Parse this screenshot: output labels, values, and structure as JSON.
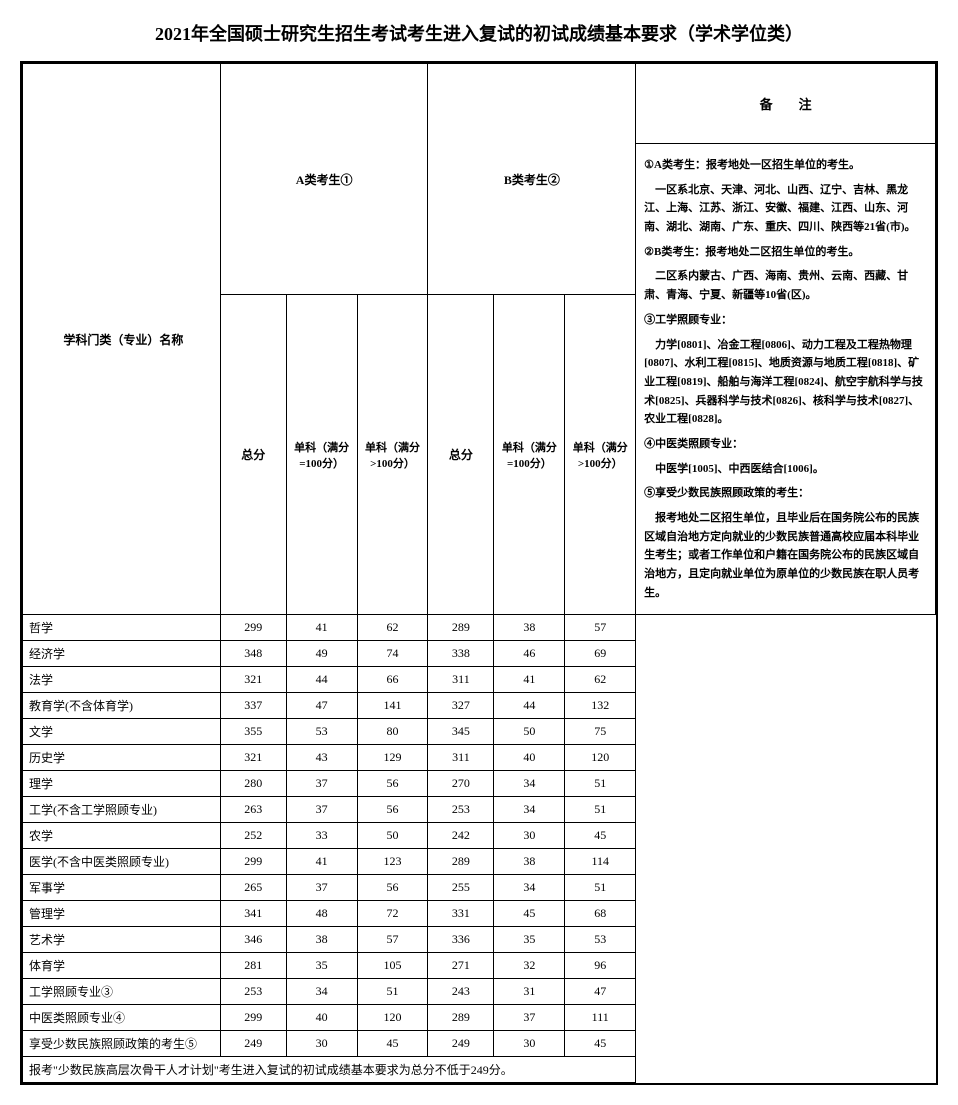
{
  "title": "2021年全国硕士研究生招生考试考生进入复试的初试成绩基本要求（学术学位类）",
  "header": {
    "subject": "学科门类（专业）名称",
    "groupA": "A类考生①",
    "groupB": "B类考生②",
    "total": "总分",
    "single100": "单科（满分=100分）",
    "singleOver100": "单科（满分>100分）",
    "remarks": "备　　注"
  },
  "rows": [
    {
      "name": "哲学",
      "a_total": "299",
      "a_s1": "41",
      "a_s2": "62",
      "b_total": "289",
      "b_s1": "38",
      "b_s2": "57"
    },
    {
      "name": "经济学",
      "a_total": "348",
      "a_s1": "49",
      "a_s2": "74",
      "b_total": "338",
      "b_s1": "46",
      "b_s2": "69"
    },
    {
      "name": "法学",
      "a_total": "321",
      "a_s1": "44",
      "a_s2": "66",
      "b_total": "311",
      "b_s1": "41",
      "b_s2": "62"
    },
    {
      "name": "教育学(不含体育学)",
      "a_total": "337",
      "a_s1": "47",
      "a_s2": "141",
      "b_total": "327",
      "b_s1": "44",
      "b_s2": "132"
    },
    {
      "name": "文学",
      "a_total": "355",
      "a_s1": "53",
      "a_s2": "80",
      "b_total": "345",
      "b_s1": "50",
      "b_s2": "75"
    },
    {
      "name": "历史学",
      "a_total": "321",
      "a_s1": "43",
      "a_s2": "129",
      "b_total": "311",
      "b_s1": "40",
      "b_s2": "120"
    },
    {
      "name": "理学",
      "a_total": "280",
      "a_s1": "37",
      "a_s2": "56",
      "b_total": "270",
      "b_s1": "34",
      "b_s2": "51"
    },
    {
      "name": "工学(不含工学照顾专业)",
      "a_total": "263",
      "a_s1": "37",
      "a_s2": "56",
      "b_total": "253",
      "b_s1": "34",
      "b_s2": "51"
    },
    {
      "name": "农学",
      "a_total": "252",
      "a_s1": "33",
      "a_s2": "50",
      "b_total": "242",
      "b_s1": "30",
      "b_s2": "45"
    },
    {
      "name": "医学(不含中医类照顾专业)",
      "a_total": "299",
      "a_s1": "41",
      "a_s2": "123",
      "b_total": "289",
      "b_s1": "38",
      "b_s2": "114"
    },
    {
      "name": "军事学",
      "a_total": "265",
      "a_s1": "37",
      "a_s2": "56",
      "b_total": "255",
      "b_s1": "34",
      "b_s2": "51"
    },
    {
      "name": "管理学",
      "a_total": "341",
      "a_s1": "48",
      "a_s2": "72",
      "b_total": "331",
      "b_s1": "45",
      "b_s2": "68"
    },
    {
      "name": "艺术学",
      "a_total": "346",
      "a_s1": "38",
      "a_s2": "57",
      "b_total": "336",
      "b_s1": "35",
      "b_s2": "53"
    },
    {
      "name": "体育学",
      "a_total": "281",
      "a_s1": "35",
      "a_s2": "105",
      "b_total": "271",
      "b_s1": "32",
      "b_s2": "96"
    },
    {
      "name": "工学照顾专业③",
      "a_total": "253",
      "a_s1": "34",
      "a_s2": "51",
      "b_total": "243",
      "b_s1": "31",
      "b_s2": "47"
    },
    {
      "name": "中医类照顾专业④",
      "a_total": "299",
      "a_s1": "40",
      "a_s2": "120",
      "b_total": "289",
      "b_s1": "37",
      "b_s2": "111"
    },
    {
      "name": "享受少数民族照顾政策的考生⑤",
      "a_total": "249",
      "a_s1": "30",
      "a_s2": "45",
      "b_total": "249",
      "b_s1": "30",
      "b_s2": "45"
    }
  ],
  "footer": "报考\"少数民族高层次骨干人才计划\"考生进入复试的初试成绩基本要求为总分不低于249分。",
  "remarks": {
    "p1": "①A类考生：报考地处一区招生单位的考生。",
    "p2": "　一区系北京、天津、河北、山西、辽宁、吉林、黑龙江、上海、江苏、浙江、安徽、福建、江西、山东、河南、湖北、湖南、广东、重庆、四川、陕西等21省(市)。",
    "p3": "②B类考生：报考地处二区招生单位的考生。",
    "p4": "　二区系内蒙古、广西、海南、贵州、云南、西藏、甘肃、青海、宁夏、新疆等10省(区)。",
    "p5": "③工学照顾专业：",
    "p6": "　力学[0801]、冶金工程[0806]、动力工程及工程热物理[0807]、水利工程[0815]、地质资源与地质工程[0818]、矿业工程[0819]、船舶与海洋工程[0824]、航空宇航科学与技术[0825]、兵器科学与技术[0826]、核科学与技术[0827]、农业工程[0828]。",
    "p7": "④中医类照顾专业：",
    "p8": "　中医学[1005]、中西医结合[1006]。",
    "p9": "⑤享受少数民族照顾政策的考生：",
    "p10": "　报考地处二区招生单位，且毕业后在国务院公布的民族区域自治地方定向就业的少数民族普通高校应届本科毕业生考生；或者工作单位和户籍在国务院公布的民族区域自治地方，且定向就业单位为原单位的少数民族在职人员考生。"
  }
}
